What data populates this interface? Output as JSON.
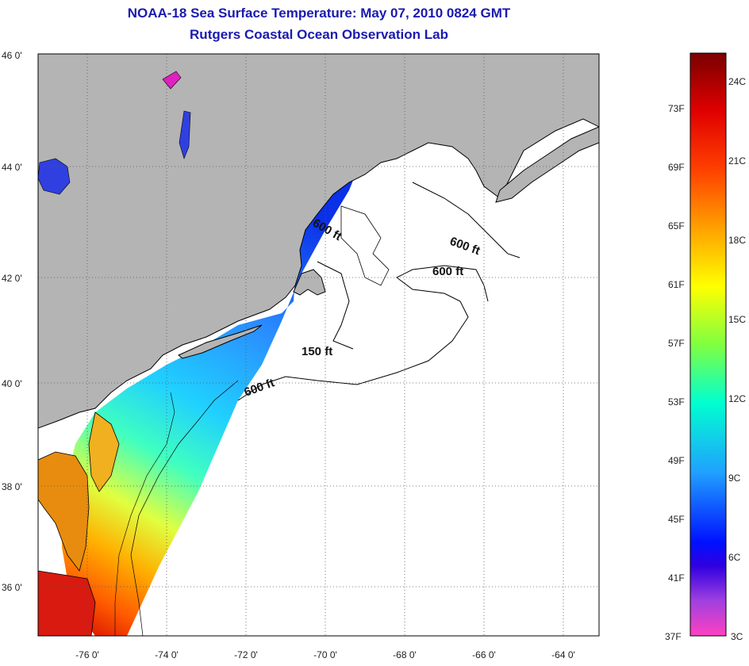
{
  "title": {
    "line1": "NOAA-18 Sea Surface Temperature:  May 07, 2010 0824 GMT",
    "line2": "Rutgers Coastal Ocean Observation Lab"
  },
  "map": {
    "lat_labels": [
      "46 0'",
      "44 0'",
      "42 0'",
      "40 0'",
      "38 0'",
      "36 0'"
    ],
    "lon_labels": [
      "-76 0'",
      "-74 0'",
      "-72 0'",
      "-70 0'",
      "-68 0'",
      "-66 0'",
      "-64 0'"
    ],
    "isobath_labels": [
      "600 ft",
      "600 ft",
      "600 ft",
      "150 ft",
      "600 ft"
    ],
    "colors": {
      "land": "#b4b4b4",
      "ocean": "#ffffff",
      "coast": "#000000"
    }
  },
  "colorbar": {
    "fahrenheit_labels": [
      "73F",
      "69F",
      "65F",
      "61F",
      "57F",
      "53F",
      "49F",
      "45F",
      "41F",
      "37F"
    ],
    "celsius_labels": [
      "24C",
      "21C",
      "18C",
      "15C",
      "12C",
      "9C",
      "6C",
      "3C"
    ],
    "colors": [
      "#8b0000",
      "#ff0000",
      "#ff8c00",
      "#ffff00",
      "#7fff00",
      "#00ffff",
      "#1e90ff",
      "#0000ff",
      "#8a2be2",
      "#ff00ff"
    ]
  }
}
